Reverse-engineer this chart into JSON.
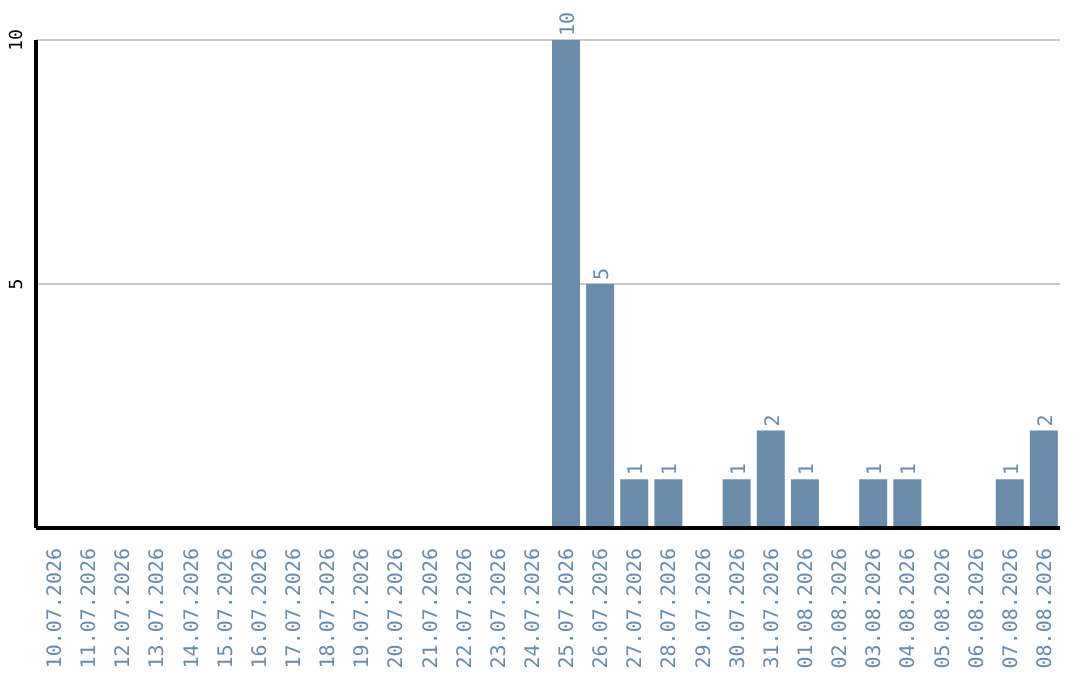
{
  "chart_data": {
    "type": "bar",
    "categories": [
      "10.07.2026",
      "11.07.2026",
      "12.07.2026",
      "13.07.2026",
      "14.07.2026",
      "15.07.2026",
      "16.07.2026",
      "17.07.2026",
      "18.07.2026",
      "19.07.2026",
      "20.07.2026",
      "21.07.2026",
      "22.07.2026",
      "23.07.2026",
      "24.07.2026",
      "25.07.2026",
      "26.07.2026",
      "27.07.2026",
      "28.07.2026",
      "29.07.2026",
      "30.07.2026",
      "31.07.2026",
      "01.08.2026",
      "02.08.2026",
      "03.08.2026",
      "04.08.2026",
      "05.08.2026",
      "06.08.2026",
      "07.08.2026",
      "08.08.2026"
    ],
    "values": [
      0,
      0,
      0,
      0,
      0,
      0,
      0,
      0,
      0,
      0,
      0,
      0,
      0,
      0,
      0,
      10,
      5,
      1,
      1,
      0,
      1,
      2,
      1,
      0,
      1,
      1,
      0,
      0,
      1,
      2
    ],
    "value_labels": [
      null,
      null,
      null,
      null,
      null,
      null,
      null,
      null,
      null,
      null,
      null,
      null,
      null,
      null,
      null,
      "10",
      "5",
      "1",
      "1",
      null,
      "1",
      "2",
      "1",
      null,
      "1",
      "1",
      null,
      null,
      "1",
      "2"
    ],
    "color": "#6a8cab",
    "ylim": [
      0,
      10
    ],
    "yticks": [
      5,
      10
    ],
    "grid": "y"
  }
}
